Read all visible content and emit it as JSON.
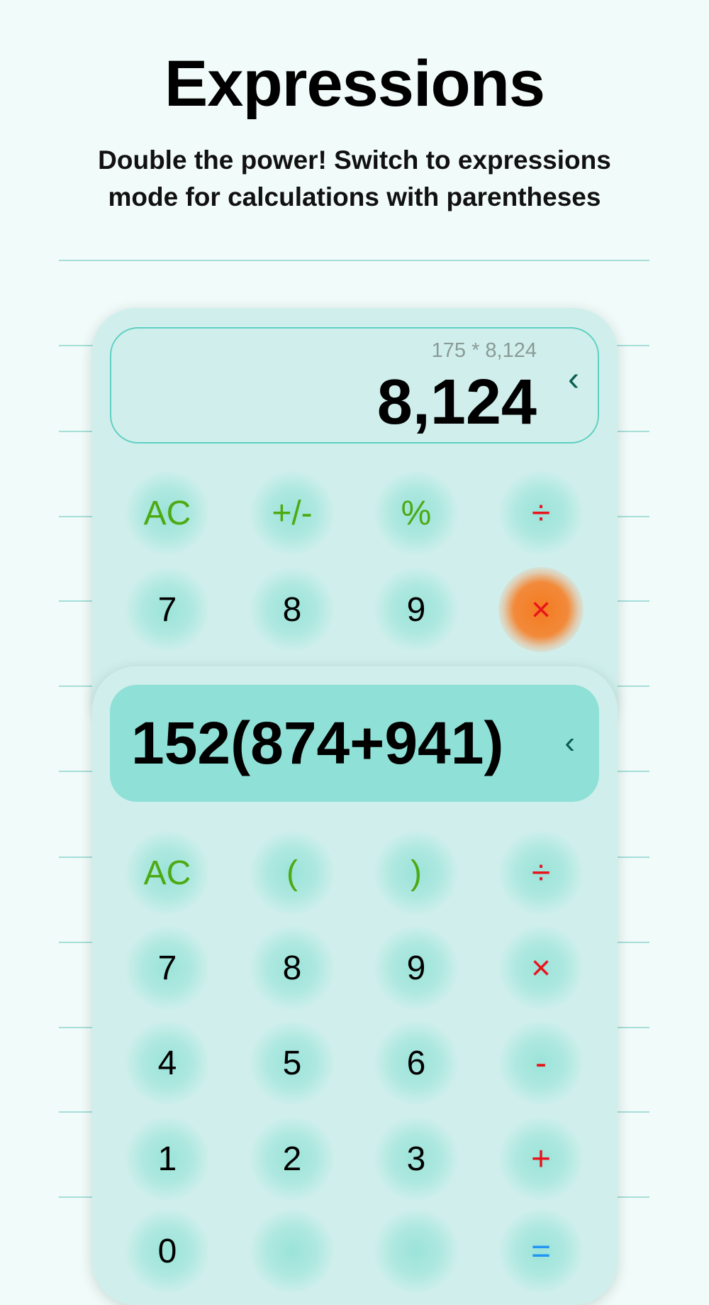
{
  "header": {
    "title": "Expressions",
    "subtitle_line1": "Double the power! Switch to expressions",
    "subtitle_line2": "mode for calculations with parentheses"
  },
  "basic_calc": {
    "expression": "175 * 8,124",
    "result": "8,124",
    "backspace_icon": "chevron-left-icon",
    "keys": [
      [
        "AC",
        "+/-",
        "%",
        "÷"
      ],
      [
        "7",
        "8",
        "9",
        "×"
      ]
    ],
    "active_key": "×"
  },
  "expression_calc": {
    "input": "152(874+941)",
    "backspace_icon": "chevron-left-icon",
    "keys": [
      [
        "AC",
        "(",
        ")",
        "÷"
      ],
      [
        "7",
        "8",
        "9",
        "×"
      ],
      [
        "4",
        "5",
        "6",
        "-"
      ],
      [
        "1",
        "2",
        "3",
        "+"
      ],
      [
        "0",
        "",
        "",
        "="
      ]
    ]
  },
  "colors": {
    "background": "#f1fbf9",
    "card": "#d0efec",
    "function_key": "#4caa12",
    "operator_key": "#e8141c",
    "equals_key": "#2196f3",
    "active_key": "#f47a1f",
    "display_fill": "#8fe0d6"
  }
}
